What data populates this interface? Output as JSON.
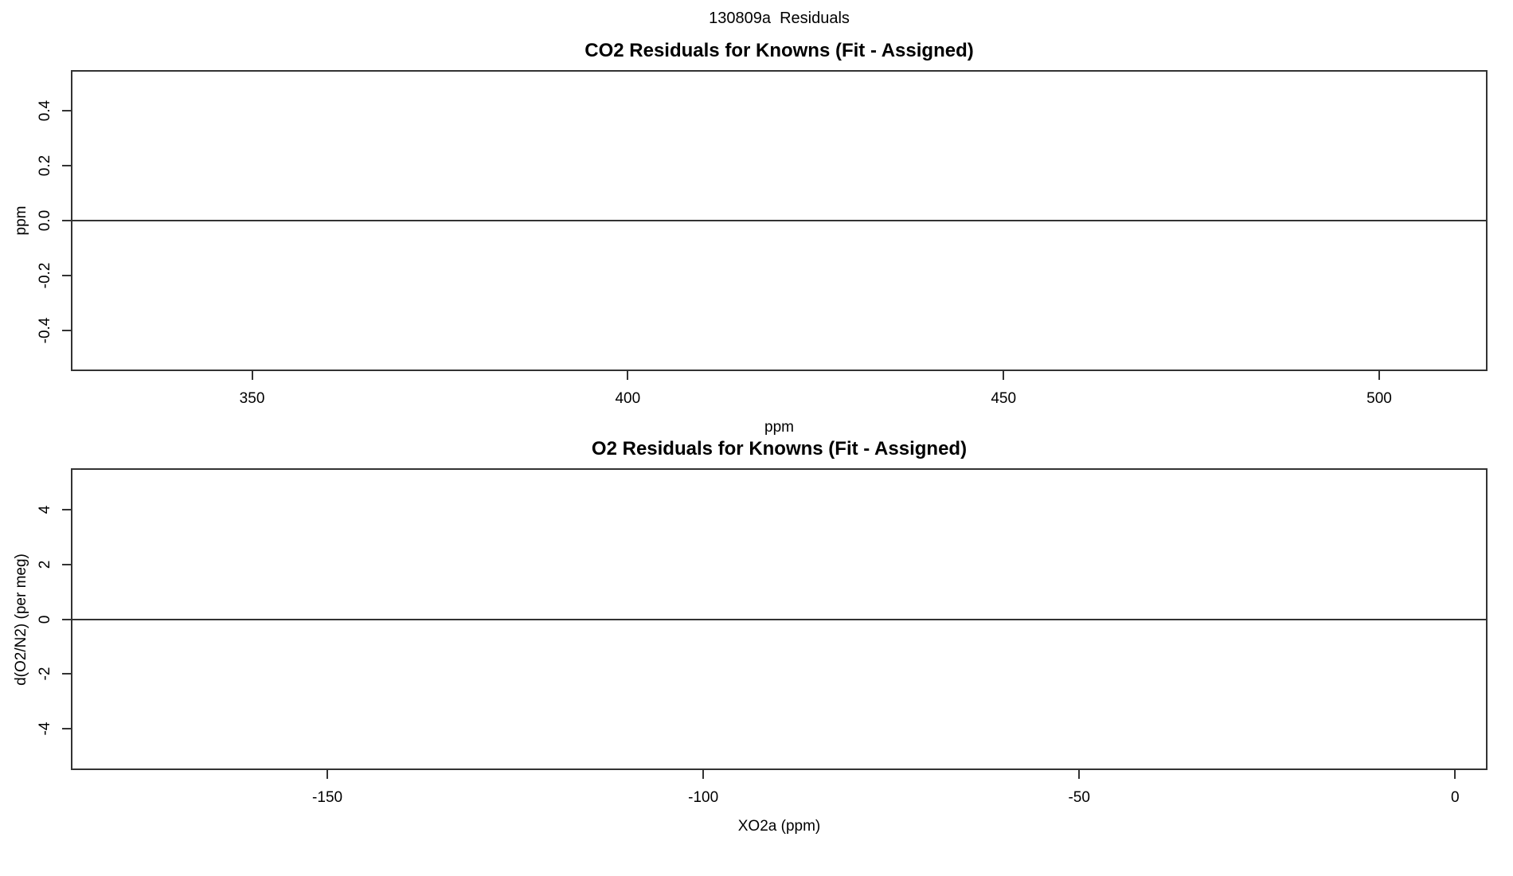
{
  "page_title": "130809a  Residuals",
  "chart_data": [
    {
      "type": "scatter",
      "title": "CO2 Residuals for Knowns (Fit - Assigned)",
      "xlabel": "ppm",
      "ylabel": "ppm",
      "xlim": [
        326.1,
        514.2
      ],
      "ylim": [
        -0.543,
        0.543
      ],
      "xticks": [
        350,
        400,
        450,
        500
      ],
      "yticks": [
        0.4,
        0.2,
        0.0,
        -0.2,
        -0.4
      ],
      "xtick_labels": [
        "350",
        "400",
        "450",
        "500"
      ],
      "ytick_labels": [
        "0.4",
        "0.2",
        "0.0",
        "-0.2",
        "-0.4"
      ],
      "reference_lines": [
        {
          "axis": "y",
          "value": 0
        }
      ],
      "series": [],
      "grid": false,
      "legend": null
    },
    {
      "type": "scatter",
      "title": "O2 Residuals for Knowns (Fit - Assigned)",
      "xlabel": "XO2a (ppm)",
      "ylabel": "d(O2/N2) (per meg)",
      "xlim": [
        -183.9,
        4.1
      ],
      "ylim": [
        -5.47,
        5.47
      ],
      "xticks": [
        -150,
        -100,
        -50,
        0
      ],
      "yticks": [
        4,
        2,
        0,
        -2,
        -4
      ],
      "xtick_labels": [
        "-150",
        "-100",
        "-50",
        "0"
      ],
      "ytick_labels": [
        "4",
        "2",
        "0",
        "-2",
        "-4"
      ],
      "reference_lines": [
        {
          "axis": "y",
          "value": 0
        }
      ],
      "series": [],
      "grid": false,
      "legend": null
    }
  ]
}
